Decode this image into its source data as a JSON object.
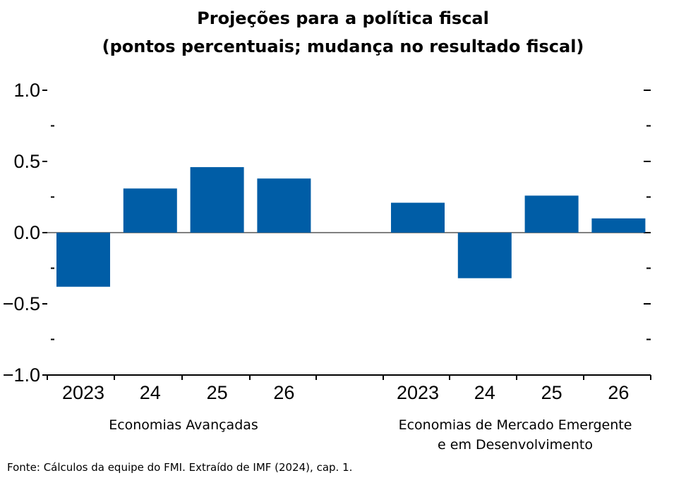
{
  "title_line1": "Projeções para a política fiscal",
  "title_line2": "(pontos percentuais; mudança no resultado fiscal)",
  "source": "Fonte: Cálculos da equipe do FMI. Extraído de IMF (2024), cap. 1.",
  "chart_data": {
    "type": "bar",
    "ylim": [
      -1.0,
      1.0
    ],
    "yticks": [
      1.0,
      0.5,
      0.0,
      -0.5,
      -1.0
    ],
    "ytick_labels": [
      "1.0",
      "0.5",
      "0.0",
      "−0.5",
      "−1.0"
    ],
    "bar_color": "#005DA6",
    "groups": [
      {
        "label_lines": [
          "Economias Avançadas"
        ],
        "categories": [
          "2023",
          "24",
          "25",
          "26"
        ],
        "values": [
          -0.38,
          0.31,
          0.46,
          0.38
        ]
      },
      {
        "label_lines": [
          "Economias de Mercado Emergente",
          "e em Desenvolvimento"
        ],
        "categories": [
          "2023",
          "24",
          "25",
          "26"
        ],
        "values": [
          0.21,
          -0.32,
          0.26,
          0.1
        ]
      }
    ]
  }
}
